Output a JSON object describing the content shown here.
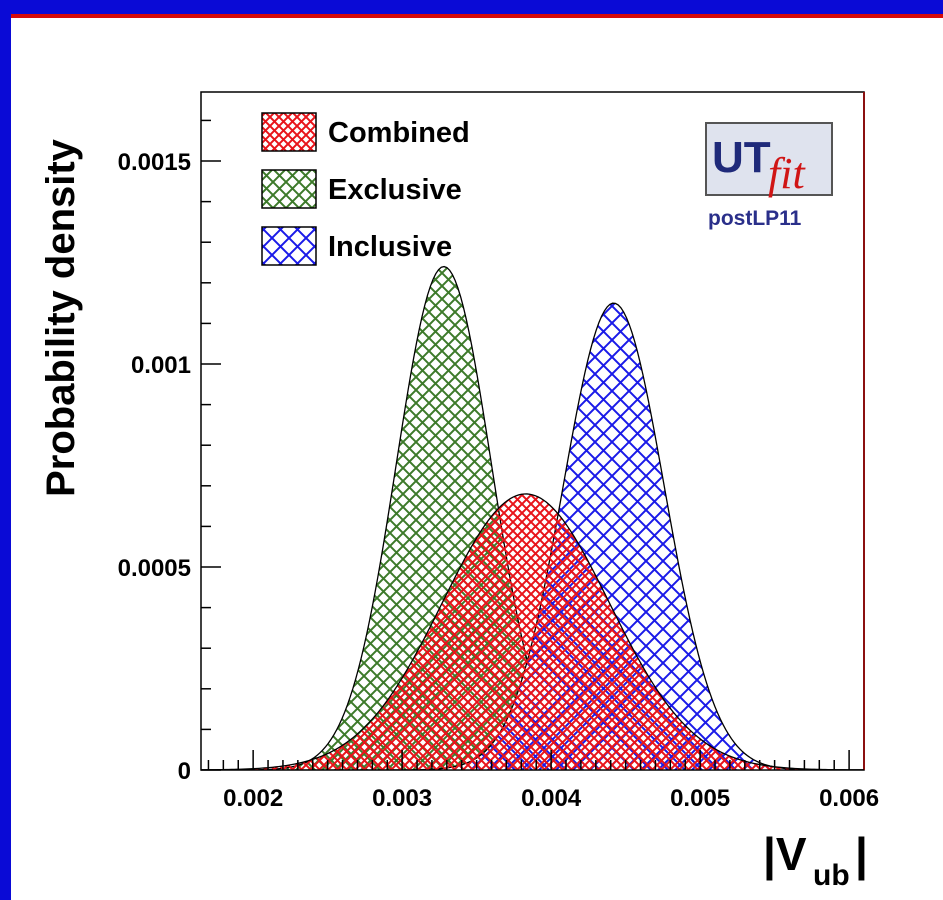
{
  "chart_data": {
    "type": "area",
    "title": "",
    "xlabel": "|V",
    "xlabel_sub": "ub",
    "xlabel_end": "|",
    "ylabel": "Probability density",
    "xlim": [
      0.0016,
      0.0061
    ],
    "ylim": [
      0,
      0.00165
    ],
    "xticks": [
      0.002,
      0.003,
      0.004,
      0.005,
      0.006
    ],
    "xtick_labels": [
      "0.002",
      "0.003",
      "0.004",
      "0.005",
      "0.006"
    ],
    "yticks": [
      0,
      0.0005,
      0.001,
      0.0015
    ],
    "ytick_labels": [
      "0",
      "0.0005",
      "0.001",
      "0.0015"
    ],
    "grid": false,
    "legend_position": "top-left",
    "series": [
      {
        "name": "Combined",
        "color": "#e8141a",
        "fill": "crosshatch",
        "mean": 0.00383,
        "sigma": 0.00056,
        "peak": 0.00068
      },
      {
        "name": "Exclusive",
        "color": "#3d7a2a",
        "fill": "crosshatch",
        "mean": 0.00328,
        "sigma": 0.00032,
        "peak": 0.00124
      },
      {
        "name": "Inclusive",
        "color": "#1a1ae8",
        "fill": "crosshatch",
        "mean": 0.00442,
        "sigma": 0.00034,
        "peak": 0.00115
      }
    ],
    "logo": {
      "text_main": "UT",
      "text_fit": "fit",
      "subtitle": "postLP11"
    }
  }
}
